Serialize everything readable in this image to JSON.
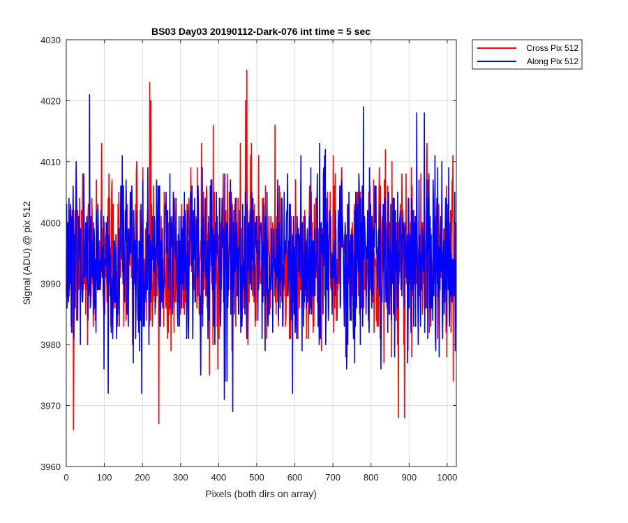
{
  "chart_data": {
    "type": "line",
    "title": "BS03 Day03 20190112-Dark-076 int time = 5 sec",
    "xlabel": "Pixels (both dirs on array)",
    "ylabel": "Signal (ADU) @ pix 512",
    "xlim": [
      0,
      1024
    ],
    "ylim": [
      3960,
      4030
    ],
    "xticks": [
      0,
      100,
      200,
      300,
      400,
      500,
      600,
      700,
      800,
      900,
      1000
    ],
    "yticks": [
      3960,
      3970,
      3980,
      3990,
      4000,
      4010,
      4020,
      4030
    ],
    "grid": true,
    "legend_position": "outside-top-right",
    "series": [
      {
        "name": "Cross Pix 512",
        "color": "#ff0000",
        "mean": 3994,
        "std": 7,
        "min": 3966,
        "max": 4025,
        "extremes": [
          [
            19,
            3966
          ],
          [
            219,
            4023
          ],
          [
            243,
            3967
          ],
          [
            474,
            4025
          ],
          [
            872,
            3968
          ],
          [
            888,
            3968
          ]
        ]
      },
      {
        "name": "Along Pix 512",
        "color": "#0000ff",
        "mean": 3994,
        "std": 7,
        "min": 3969,
        "max": 4021,
        "extremes": [
          [
            61,
            4021
          ],
          [
            110,
            3972
          ],
          [
            415,
            3971
          ],
          [
            417,
            3974
          ],
          [
            422,
            3974
          ],
          [
            437,
            3969
          ],
          [
            780,
            4019
          ],
          [
            920,
            4018
          ],
          [
            940,
            4018
          ]
        ]
      }
    ]
  }
}
